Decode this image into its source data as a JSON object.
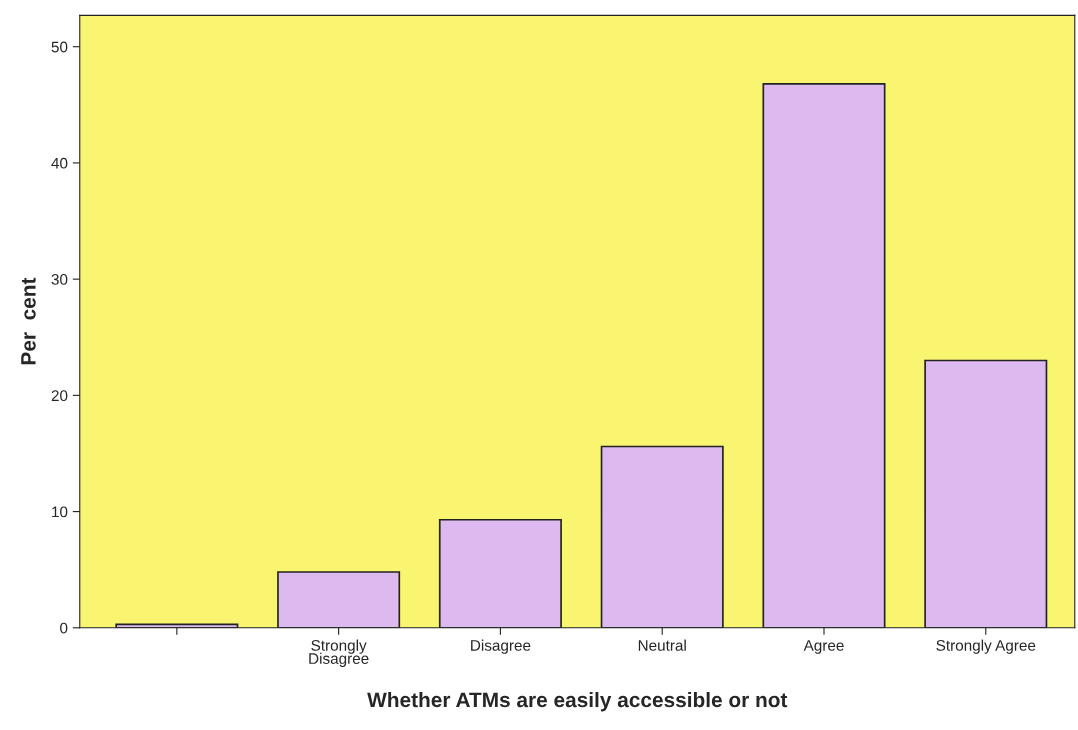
{
  "chart_data": {
    "type": "bar",
    "xlabel": "Whether ATMs are easily accessible or not",
    "ylabel": "Per  cent",
    "categories": [
      null,
      "Strongly\nDisagree",
      "Disagree",
      "Neutral",
      "Agree",
      "Strongly Agree"
    ],
    "values": [
      0.3,
      4.8,
      9.3,
      15.6,
      46.8,
      23.0
    ],
    "color": "#dcbaf0",
    "ylim": [
      0,
      52.7
    ],
    "yticks": [
      0,
      10,
      20,
      30,
      40,
      50
    ],
    "grid": false
  }
}
